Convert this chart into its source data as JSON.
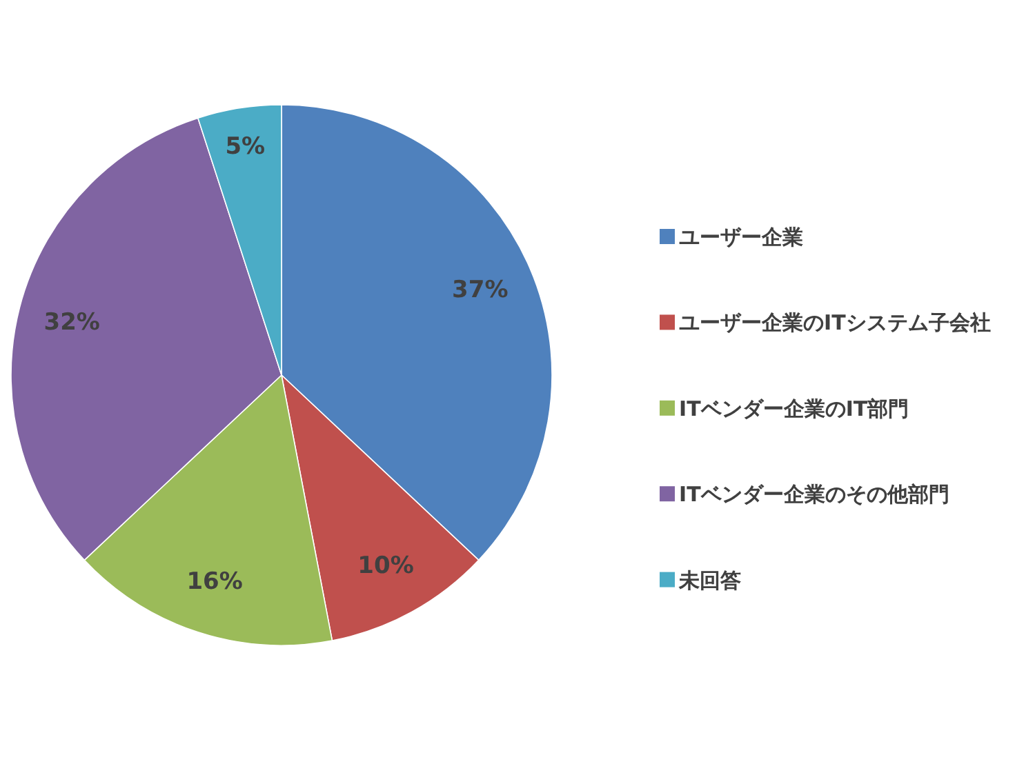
{
  "chart_data": {
    "type": "pie",
    "categories": [
      "ユーザー企業",
      "ユーザー企業のITシステム子会社",
      "ITベンダー企業のIT部門",
      "ITベンダー企業のその他部門",
      "未回答"
    ],
    "values": [
      37,
      10,
      16,
      32,
      5
    ],
    "colors": [
      "#4f81bd",
      "#c0504d",
      "#9bbb59",
      "#8064a2",
      "#4bacc6"
    ],
    "value_labels": [
      "37%",
      "10%",
      "16%",
      "32%",
      "5%"
    ],
    "legend": "right"
  }
}
